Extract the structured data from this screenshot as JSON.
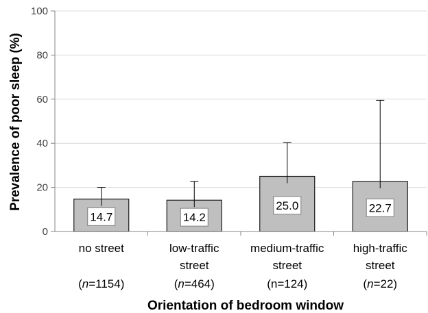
{
  "chart_data": {
    "type": "bar",
    "categories": [
      [
        "no street"
      ],
      [
        "low-traffic",
        "street"
      ],
      [
        "medium-traffic",
        "street"
      ],
      [
        "high-traffic",
        "street"
      ]
    ],
    "sample_sizes": [
      {
        "prefix": "",
        "n": "n",
        "rest": "=1154"
      },
      {
        "prefix": "",
        "n": "n",
        "rest": "=464"
      },
      {
        "prefix": "",
        "n": "",
        "rest": "n=124"
      },
      {
        "prefix": "",
        "n": "n",
        "rest": "=22"
      }
    ],
    "values": [
      14.7,
      14.2,
      25.0,
      22.7
    ],
    "value_labels": [
      "14.7",
      "14.2",
      "25.0",
      "22.7"
    ],
    "error_upper": [
      20.0,
      22.7,
      40.3,
      59.5
    ],
    "xlabel": "Orientation of bedroom window",
    "ylabel": "Prevalence of poor sleep (%)",
    "ylim": [
      0,
      100
    ],
    "yticks": [
      0,
      20,
      40,
      60,
      80,
      100
    ],
    "grid": true,
    "colors": {
      "bar_fill": "#bfbfbf",
      "bar_stroke": "#1a1a1a",
      "grid": "#d9d9d9",
      "axis": "#868686",
      "label_box_stroke": "#7f7f7f"
    }
  }
}
